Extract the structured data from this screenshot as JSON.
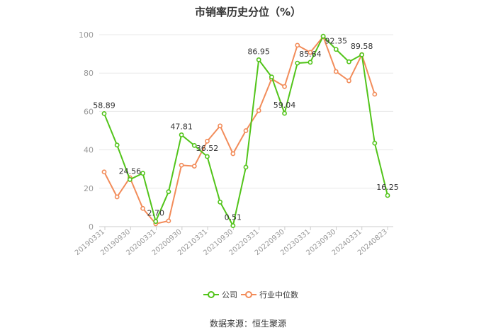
{
  "chart_data": {
    "type": "line",
    "title": "市销率历史分位（%）",
    "source": "数据来源：恒生聚源",
    "ylim": [
      0,
      100
    ],
    "yticks": [
      0,
      20,
      40,
      60,
      80,
      100
    ],
    "x_tick_labels": [
      "20190331",
      "20190930",
      "20200331",
      "20200930",
      "20210331",
      "20210930",
      "20220331",
      "20220930",
      "20230331",
      "20230930",
      "20240331",
      "20240823"
    ],
    "legend": {
      "position": "bottom-center",
      "items": [
        "公司",
        "行业中位数"
      ]
    },
    "grid": true,
    "series": [
      {
        "name": "公司",
        "color": "#52c41a",
        "values": [
          58.89,
          42.5,
          24.56,
          27.8,
          2.7,
          18.2,
          47.81,
          42.3,
          36.52,
          12.8,
          0.51,
          31.0,
          86.95,
          78.0,
          59.04,
          85.2,
          85.64,
          99.2,
          92.35,
          85.9,
          89.58,
          43.5,
          16.25
        ],
        "labels": {
          "0": "58.89",
          "2": "24.56",
          "4": "2.70",
          "6": "47.81",
          "8": "36.52",
          "10": "0.51",
          "12": "86.95",
          "14": "59.04",
          "16": "85.64",
          "18": "92.35",
          "20": "89.58",
          "22": "16.25"
        }
      },
      {
        "name": "行业中位数",
        "color": "#f28c5a",
        "values": [
          28.5,
          15.5,
          25.5,
          9.5,
          1.5,
          3.0,
          32.0,
          31.5,
          44.5,
          52.5,
          38.0,
          50.0,
          60.5,
          77.0,
          73.0,
          94.5,
          90.8,
          99.0,
          80.8,
          76.0,
          89.6,
          69.0,
          null
        ]
      }
    ]
  }
}
